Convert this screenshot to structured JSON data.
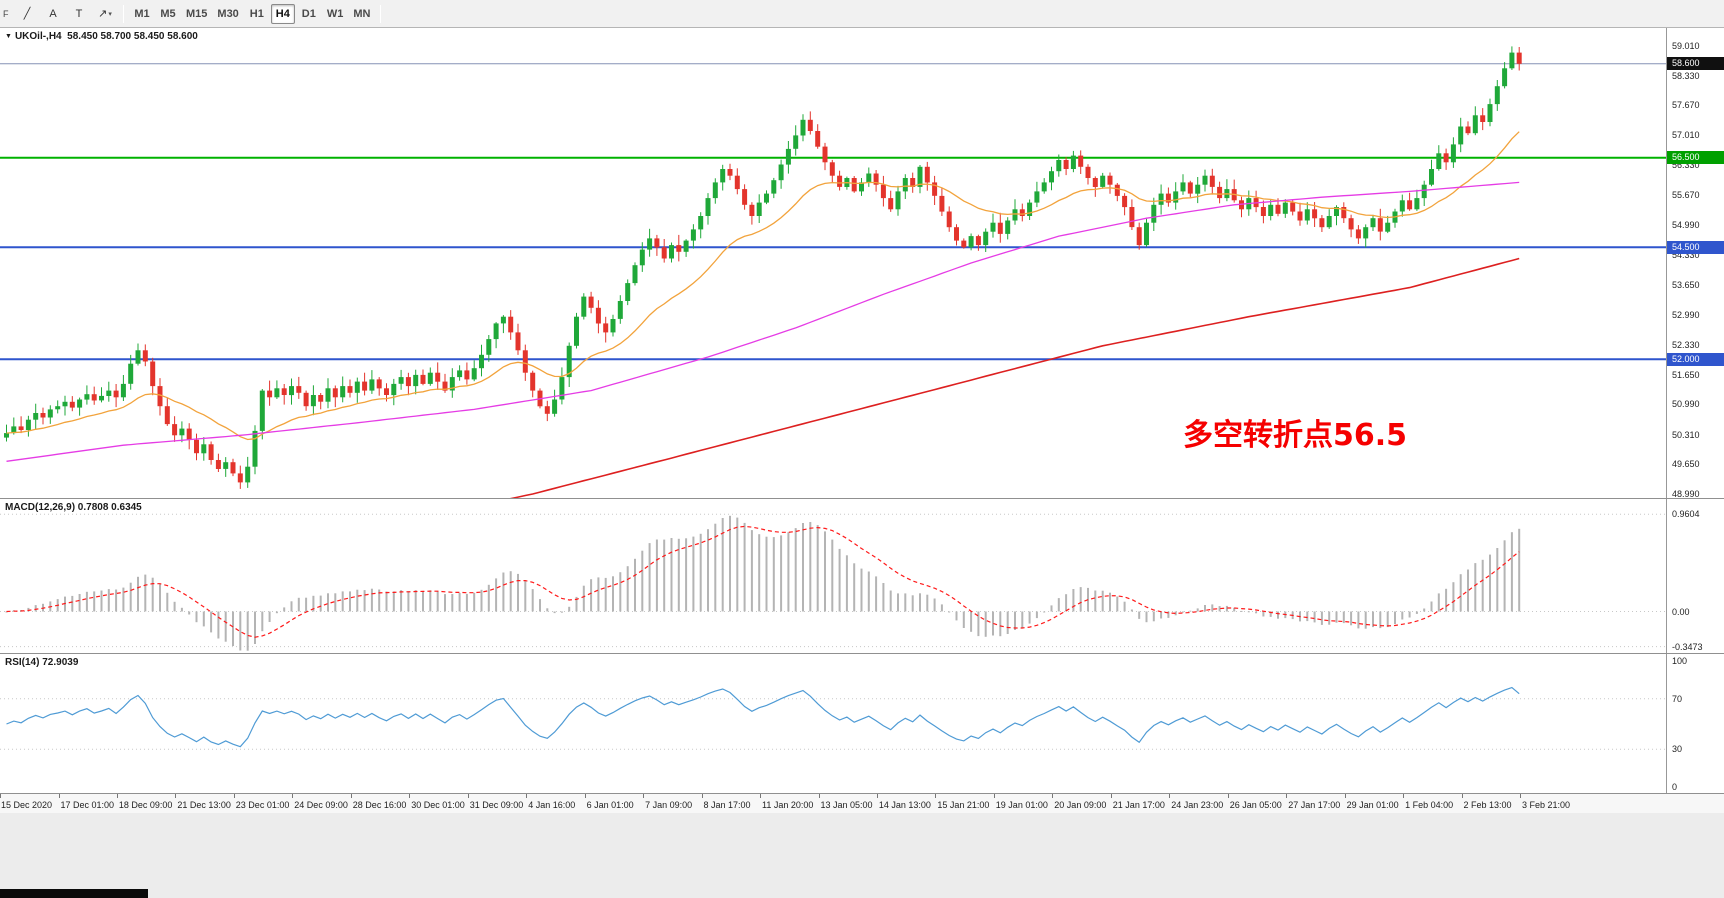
{
  "toolbar": {
    "edge_label": "F",
    "tools": [
      {
        "name": "trendline-tool",
        "glyph": "╱"
      },
      {
        "name": "text-tool",
        "glyph": "A"
      },
      {
        "name": "text-label-tool",
        "glyph": "T"
      },
      {
        "name": "shapes-tool",
        "glyph": "↗",
        "caret": "▾"
      }
    ],
    "timeframes": [
      "M1",
      "M5",
      "M15",
      "M30",
      "H1",
      "H4",
      "D1",
      "W1",
      "MN"
    ],
    "active_timeframe": "H4"
  },
  "chart": {
    "collapse_icon": "▼",
    "title_symbol": "UKOil-,H4",
    "title_ohlc": "58.450 58.700 58.450 58.600"
  },
  "chart_data": {
    "type": "candlestick",
    "symbol": "UKOil-",
    "timeframe": "H4",
    "ohlc_current": {
      "open": 58.45,
      "high": 58.7,
      "low": 58.45,
      "close": 58.6
    },
    "bars": 208,
    "first_open": 50.25,
    "y_range": [
      48.9,
      59.4
    ],
    "up_color": "#1fa839",
    "down_color": "#e3342c",
    "price_axis": [
      "59.010",
      "58.330",
      "57.670",
      "57.010",
      "56.330",
      "55.670",
      "54.990",
      "54.330",
      "53.650",
      "52.990",
      "52.330",
      "51.650",
      "50.990",
      "50.310",
      "49.650",
      "48.990"
    ],
    "x_labels": [
      "15 Dec 2020",
      "17 Dec 01:00",
      "18 Dec 09:00",
      "21 Dec 13:00",
      "23 Dec 01:00",
      "24 Dec 09:00",
      "28 Dec 16:00",
      "30 Dec 01:00",
      "31 Dec 09:00",
      "4 Jan 16:00",
      "6 Jan 01:00",
      "7 Jan 09:00",
      "8 Jan 17:00",
      "11 Jan 20:00",
      "13 Jan 05:00",
      "14 Jan 13:00",
      "15 Jan 21:00",
      "19 Jan 01:00",
      "20 Jan 09:00",
      "21 Jan 17:00",
      "24 Jan 23:00",
      "26 Jan 05:00",
      "27 Jan 17:00",
      "29 Jan 01:00",
      "1 Feb 04:00",
      "2 Feb 13:00",
      "3 Feb 21:00"
    ],
    "horizontal_lines": [
      {
        "value": 58.6,
        "label": "58.600",
        "color": "#8592b5",
        "label_bg": "#101010",
        "width": 1
      },
      {
        "value": 56.5,
        "label": "56.500",
        "color": "#00b200",
        "label_bg": "#00a000",
        "width": 2
      },
      {
        "value": 54.5,
        "label": "54.500",
        "color": "#2f55cd",
        "label_bg": "#2f55cd",
        "width": 2
      },
      {
        "value": 52.0,
        "label": "52.000",
        "color": "#2f55cd",
        "label_bg": "#2f55cd",
        "width": 2
      }
    ],
    "closes": [
      50.35,
      50.5,
      50.42,
      50.65,
      50.8,
      50.7,
      50.88,
      50.95,
      51.05,
      50.92,
      51.1,
      51.22,
      51.08,
      51.18,
      51.3,
      51.15,
      51.45,
      51.9,
      52.2,
      51.95,
      51.4,
      50.95,
      50.55,
      50.3,
      50.45,
      50.2,
      49.9,
      50.1,
      49.75,
      49.55,
      49.7,
      49.45,
      49.25,
      49.6,
      50.4,
      51.3,
      51.15,
      51.35,
      51.2,
      51.4,
      51.25,
      50.95,
      51.2,
      51.05,
      51.35,
      51.15,
      51.4,
      51.25,
      51.5,
      51.3,
      51.55,
      51.35,
      51.2,
      51.45,
      51.6,
      51.4,
      51.65,
      51.45,
      51.7,
      51.5,
      51.3,
      51.6,
      51.75,
      51.55,
      51.8,
      52.1,
      52.45,
      52.8,
      52.95,
      52.6,
      52.2,
      51.7,
      51.3,
      50.95,
      50.78,
      51.1,
      51.6,
      52.3,
      52.95,
      53.4,
      53.15,
      52.8,
      52.6,
      52.9,
      53.3,
      53.7,
      54.1,
      54.45,
      54.7,
      54.5,
      54.25,
      54.55,
      54.4,
      54.65,
      54.9,
      55.2,
      55.6,
      55.95,
      56.25,
      56.1,
      55.8,
      55.45,
      55.2,
      55.5,
      55.7,
      56.0,
      56.35,
      56.7,
      57.0,
      57.35,
      57.1,
      56.75,
      56.4,
      56.1,
      55.85,
      56.05,
      55.75,
      55.95,
      56.15,
      55.9,
      55.6,
      55.35,
      55.75,
      56.05,
      55.85,
      56.3,
      55.95,
      55.65,
      55.3,
      54.95,
      54.65,
      54.5,
      54.75,
      54.55,
      54.85,
      55.05,
      54.8,
      55.1,
      55.35,
      55.2,
      55.5,
      55.75,
      55.95,
      56.2,
      56.45,
      56.25,
      56.55,
      56.3,
      56.05,
      55.85,
      56.1,
      55.9,
      55.65,
      55.4,
      54.95,
      54.55,
      55.05,
      55.45,
      55.7,
      55.5,
      55.75,
      55.95,
      55.7,
      55.9,
      56.1,
      55.85,
      55.6,
      55.8,
      55.55,
      55.35,
      55.6,
      55.4,
      55.2,
      55.45,
      55.25,
      55.5,
      55.3,
      55.1,
      55.35,
      55.15,
      54.95,
      55.2,
      55.4,
      55.15,
      54.9,
      54.7,
      54.95,
      55.15,
      54.85,
      55.05,
      55.3,
      55.55,
      55.35,
      55.6,
      55.9,
      56.25,
      56.6,
      56.4,
      56.8,
      57.2,
      57.05,
      57.45,
      57.3,
      57.7,
      58.1,
      58.5,
      58.85,
      58.6
    ],
    "moving_averages": {
      "fast": {
        "color": "#f2a33c",
        "type": "ema",
        "period": 20
      },
      "medium": {
        "color": "#e53ce5",
        "anchors": [
          [
            0,
            49.72
          ],
          [
            16,
            50.08
          ],
          [
            32,
            50.3
          ],
          [
            48,
            50.58
          ],
          [
            64,
            50.88
          ],
          [
            80,
            51.3
          ],
          [
            96,
            52.05
          ],
          [
            108,
            52.7
          ],
          [
            120,
            53.45
          ],
          [
            132,
            54.15
          ],
          [
            144,
            54.75
          ],
          [
            156,
            55.15
          ],
          [
            168,
            55.45
          ],
          [
            180,
            55.62
          ],
          [
            192,
            55.75
          ],
          [
            207,
            55.95
          ]
        ]
      },
      "slow": {
        "color": "#dd2020",
        "anchors": [
          [
            55,
            48.4
          ],
          [
            72,
            48.99
          ],
          [
            90,
            49.75
          ],
          [
            110,
            50.6
          ],
          [
            130,
            51.45
          ],
          [
            150,
            52.3
          ],
          [
            170,
            52.95
          ],
          [
            192,
            53.6
          ],
          [
            207,
            54.25
          ]
        ]
      }
    },
    "indicators": {
      "macd": {
        "label": "MACD(12,26,9) 0.7808 0.6345",
        "params": [
          12,
          26,
          9
        ],
        "main_value": "0.7808",
        "signal_value": "0.6345",
        "axis_labels": [
          "0.9604",
          "0.00",
          "-0.3473"
        ],
        "y_range": [
          -0.41,
          1.11
        ],
        "hist_color": "#b4b4b4",
        "signal_color": "#ff1a1a"
      },
      "rsi": {
        "label": "RSI(14) 72.9039",
        "period": 14,
        "value": "72.9039",
        "axis_labels": [
          "100",
          "70",
          "30",
          "0"
        ],
        "levels": [
          70,
          30
        ],
        "y_range": [
          0,
          100
        ],
        "line_color": "#4f9bd5"
      }
    },
    "annotation": {
      "text": "多空转折点56.5",
      "color": "#f50000",
      "x": 1183,
      "y": 382
    }
  }
}
